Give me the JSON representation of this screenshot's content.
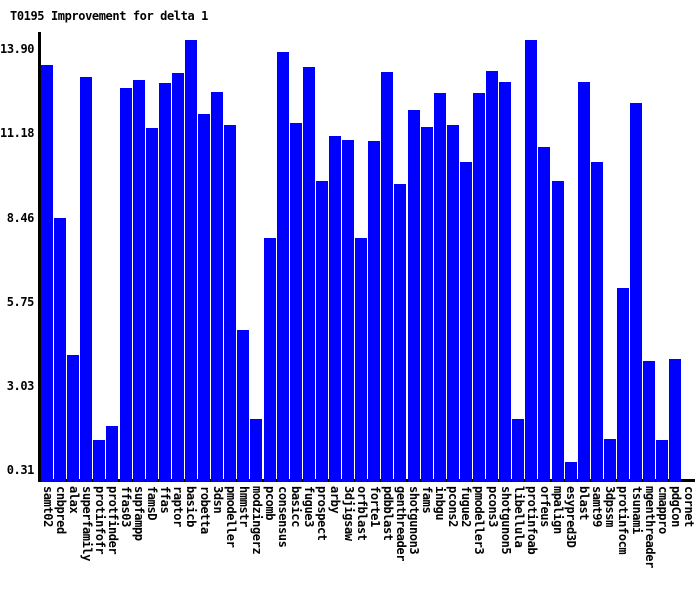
{
  "title": "T0195 Improvement for delta 1",
  "background_color": "#ffffff",
  "chart_data": {
    "type": "bar",
    "title": "T0195 Improvement for delta 1",
    "bar_color": "#0000ff",
    "axis_color": "#000000",
    "text_color": "#000000",
    "xlabel": "",
    "ylabel": "",
    "grid": false,
    "legend": null,
    "ylim": [
      0,
      14.45
    ],
    "ytick_labels": [
      "13.90",
      "11.18",
      "8.46",
      "5.75",
      "3.03",
      "0.31"
    ],
    "ytick_values": [
      13.9,
      11.18,
      8.46,
      5.75,
      3.03,
      0.31
    ],
    "categories": [
      "samt02",
      "cnbpred",
      "alax",
      "superfamily",
      "protinfofr",
      "protfinder",
      "ffas03",
      "supfampp",
      "famsD",
      "ffas",
      "raptor",
      "basicb",
      "robetta",
      "3dsn",
      "pmodeller",
      "hmmstr",
      "modzingerz",
      "pcomb",
      "consensus",
      "basicc",
      "fugue3",
      "prospect",
      "arby",
      "3djigsaw",
      "orfblast",
      "forte1",
      "pdbblast",
      "genthreader",
      "shotgunon3",
      "fams",
      "inbgu",
      "pcons2",
      "fugue2",
      "pmodeller3",
      "pcons3",
      "shotgunon5",
      "libellula",
      "protinfoab",
      "orfeus",
      "mpalign",
      "esypred3D",
      "blast",
      "samt99",
      "3dpssm",
      "protinfocm",
      "tsunami",
      "mgenthreader",
      "cmappro",
      "pdgCon",
      "cornet"
    ],
    "values": [
      13.38,
      8.45,
      4.04,
      12.99,
      1.28,
      1.74,
      12.64,
      12.9,
      11.34,
      12.8,
      13.12,
      14.19,
      11.82,
      12.51,
      11.44,
      4.85,
      1.96,
      7.8,
      13.79,
      11.5,
      13.33,
      9.65,
      11.08,
      10.98,
      7.8,
      10.92,
      13.16,
      9.55,
      11.92,
      11.37,
      12.47,
      11.44,
      10.27,
      12.47,
      13.19,
      12.83,
      1.96,
      14.19,
      10.75,
      9.65,
      0.58,
      12.83,
      10.27,
      1.32,
      6.18,
      12.15,
      3.85,
      1.28,
      3.91,
      0.0
    ]
  }
}
